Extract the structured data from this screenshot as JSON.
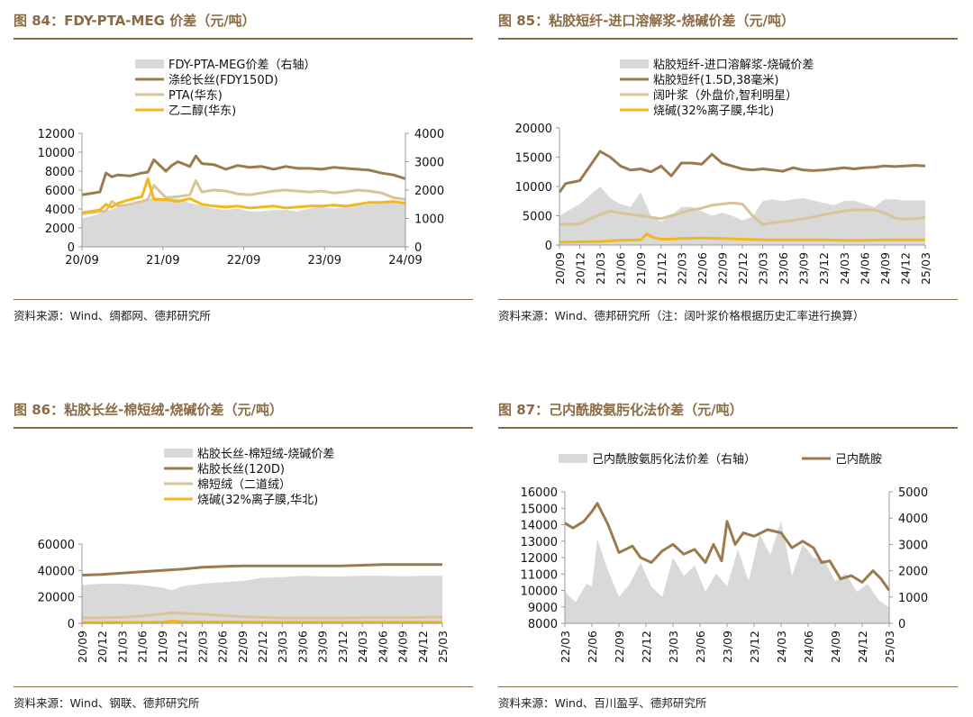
{
  "colors": {
    "area": "#D9D9D9",
    "brown": "#9B7B4E",
    "tan": "#D7C49B",
    "gold": "#F2B81B",
    "title": "#8B6B45"
  },
  "panels": [
    {
      "title": "图 84：FDY-PTA-MEG 价差（元/吨）",
      "source": "资料来源：Wind、绸都网、德邦研究所"
    },
    {
      "title": "图 85：粘胶短纤-进口溶解浆-烧碱价差（元/吨）",
      "source": "资料来源：Wind、德邦研究所（注：阔叶浆价格根据历史汇率进行换算）"
    },
    {
      "title": "图 86：粘胶长丝-棉短绒-烧碱价差（元/吨）",
      "source": "资料来源：Wind、钢联、德邦研究所"
    },
    {
      "title": "图 87：己内酰胺氨肟化法价差（元/吨）",
      "source": "资料来源：Wind、百川盈孚、德邦研究所"
    }
  ],
  "chart_data": [
    {
      "type": "line",
      "title": "FDY-PTA-MEG 价差（元/吨）",
      "x_ticks": [
        "20/09",
        "21/09",
        "22/09",
        "23/09",
        "24/09"
      ],
      "x_domain": [
        0,
        54
      ],
      "ylim": [
        0,
        12000
      ],
      "y_ticks": [
        0,
        2000,
        4000,
        6000,
        8000,
        10000,
        12000
      ],
      "y2lim": [
        0,
        4000
      ],
      "y2_ticks": [
        0,
        1000,
        2000,
        3000,
        4000
      ],
      "legend": [
        "FDY-PTA-MEG价差（右轴）",
        "涤纶长丝(FDY150D)",
        "PTA(华东)",
        "乙二醇(华东)"
      ],
      "series": [
        {
          "name": "FDY-PTA-MEG价差（右轴）",
          "kind": "area",
          "axis": "right",
          "color": "area",
          "x": [
            0,
            2,
            4,
            6,
            8,
            10,
            12,
            14,
            16,
            18,
            20,
            22,
            24,
            26,
            28,
            30,
            32,
            34,
            36,
            38,
            40,
            42,
            44,
            46,
            48,
            50,
            52,
            54
          ],
          "values": [
            1000,
            1100,
            1250,
            1400,
            1500,
            1550,
            1750,
            1700,
            1700,
            1550,
            1450,
            1350,
            1300,
            1350,
            1250,
            1250,
            1300,
            1300,
            1250,
            1350,
            1400,
            1350,
            1400,
            1450,
            1500,
            1550,
            1600,
            1600
          ]
        },
        {
          "name": "涤纶长丝(FDY150D)",
          "kind": "line",
          "axis": "left",
          "color": "brown",
          "x": [
            0,
            3,
            4,
            5,
            6,
            8,
            10,
            11,
            12,
            14,
            15,
            16,
            18,
            19,
            20,
            22,
            24,
            26,
            28,
            30,
            32,
            34,
            36,
            38,
            40,
            42,
            44,
            46,
            48,
            50,
            52,
            54
          ],
          "values": [
            5500,
            5800,
            7800,
            7400,
            7600,
            7500,
            7800,
            7900,
            9200,
            8000,
            8600,
            9000,
            8500,
            9600,
            8800,
            8700,
            8200,
            8600,
            8400,
            8500,
            8200,
            8500,
            8300,
            8300,
            8200,
            8400,
            8300,
            8200,
            8100,
            7800,
            7600,
            7200
          ]
        },
        {
          "name": "PTA(华东)",
          "kind": "line",
          "axis": "left",
          "color": "tan",
          "x": [
            0,
            4,
            5,
            6,
            8,
            10,
            11,
            12,
            14,
            16,
            18,
            19,
            20,
            22,
            24,
            26,
            28,
            30,
            32,
            34,
            36,
            38,
            40,
            42,
            44,
            46,
            48,
            50,
            52,
            54
          ],
          "values": [
            3500,
            3800,
            4800,
            4300,
            4500,
            4800,
            5000,
            6500,
            5200,
            5300,
            5500,
            7000,
            5800,
            6000,
            5900,
            5600,
            5500,
            5700,
            5900,
            6000,
            5900,
            5800,
            5900,
            5700,
            5800,
            6000,
            5900,
            5700,
            5200,
            5000
          ]
        },
        {
          "name": "乙二醇(华东)",
          "kind": "line",
          "axis": "left",
          "color": "gold",
          "x": [
            0,
            3,
            4,
            5,
            6,
            8,
            10,
            11,
            12,
            14,
            16,
            18,
            20,
            22,
            24,
            26,
            28,
            30,
            32,
            34,
            36,
            38,
            40,
            42,
            44,
            46,
            48,
            50,
            52,
            54
          ],
          "values": [
            3600,
            3900,
            4500,
            4200,
            4600,
            5000,
            5300,
            7200,
            5000,
            5000,
            4800,
            5100,
            4500,
            4300,
            4200,
            4300,
            4100,
            4200,
            4300,
            4100,
            4200,
            4300,
            4300,
            4400,
            4300,
            4500,
            4700,
            4700,
            4800,
            4600
          ]
        }
      ]
    },
    {
      "type": "line",
      "title": "粘胶短纤-进口溶解浆-烧碱价差（元/吨）",
      "x_ticks": [
        "20/09",
        "20/12",
        "21/03",
        "21/06",
        "21/09",
        "21/12",
        "22/03",
        "22/06",
        "22/09",
        "22/12",
        "23/03",
        "23/06",
        "23/09",
        "23/12",
        "24/03",
        "24/06",
        "24/09",
        "24/12",
        "25/03"
      ],
      "x_domain": [
        0,
        18
      ],
      "ylim": [
        0,
        20000
      ],
      "y_ticks": [
        0,
        5000,
        10000,
        15000,
        20000
      ],
      "legend": [
        "粘胶短纤-进口溶解浆-烧碱价差",
        "粘胶短纤(1.5D,38毫米)",
        "阔叶浆（外盘价,智利明星）",
        "烧碱(32%离子膜,华北)"
      ],
      "series": [
        {
          "name": "粘胶短纤-进口溶解浆-烧碱价差",
          "kind": "area",
          "axis": "left",
          "color": "area",
          "x": [
            0,
            0.5,
            1,
            1.5,
            2,
            2.5,
            3,
            3.5,
            4,
            4.5,
            5,
            5.5,
            6,
            6.5,
            7,
            7.5,
            8,
            8.5,
            9,
            9.5,
            10,
            10.5,
            11,
            11.5,
            12,
            12.5,
            13,
            13.5,
            14,
            14.5,
            15,
            15.5,
            16,
            16.5,
            17,
            17.5,
            18
          ],
          "values": [
            5000,
            6000,
            7000,
            8500,
            10000,
            8000,
            7000,
            6500,
            9000,
            5000,
            4000,
            5000,
            6500,
            6500,
            5800,
            5000,
            5500,
            5000,
            4200,
            4800,
            7500,
            7800,
            7500,
            7800,
            8000,
            7600,
            7200,
            6800,
            7500,
            7600,
            7000,
            6500,
            7800,
            7800,
            7600,
            7600,
            7600
          ]
        },
        {
          "name": "粘胶短纤(1.5D,38毫米)",
          "kind": "line",
          "axis": "left",
          "color": "brown",
          "x": [
            0,
            0.3,
            1,
            1.5,
            2,
            2.5,
            3,
            3.5,
            4,
            4.5,
            5,
            5.5,
            6,
            6.5,
            7,
            7.5,
            8,
            8.5,
            9,
            9.5,
            10,
            10.5,
            11,
            11.5,
            12,
            12.5,
            13,
            13.5,
            14,
            14.5,
            15,
            15.5,
            16,
            16.5,
            17,
            17.5,
            18
          ],
          "values": [
            9000,
            10500,
            11000,
            13500,
            16000,
            15000,
            13500,
            12800,
            13000,
            12500,
            13500,
            11800,
            14000,
            14000,
            13800,
            15500,
            14000,
            13500,
            13000,
            12800,
            13000,
            12800,
            12600,
            13200,
            12800,
            12700,
            12800,
            13000,
            13200,
            13000,
            13200,
            13300,
            13500,
            13400,
            13500,
            13600,
            13500
          ]
        },
        {
          "name": "阔叶浆（外盘价,智利明星）",
          "kind": "line",
          "axis": "left",
          "color": "tan",
          "x": [
            0,
            1,
            1.5,
            2,
            2.5,
            3,
            4,
            5,
            5.5,
            6,
            6.5,
            7,
            7.5,
            8,
            8.5,
            9,
            9.5,
            10,
            10.5,
            11,
            11.5,
            12,
            12.5,
            13,
            13.5,
            14,
            14.5,
            15,
            15.5,
            16,
            16.5,
            17,
            17.5,
            18
          ],
          "values": [
            3500,
            3600,
            4500,
            5200,
            5800,
            5500,
            5000,
            4500,
            5000,
            5500,
            6000,
            6300,
            6800,
            7000,
            7200,
            7000,
            5000,
            3500,
            3800,
            4000,
            4200,
            4500,
            4800,
            5200,
            5500,
            5800,
            6000,
            6000,
            6000,
            5500,
            4600,
            4400,
            4500,
            4700
          ]
        },
        {
          "name": "烧碱(32%离子膜,华北)",
          "kind": "line",
          "axis": "left",
          "color": "gold",
          "x": [
            0,
            2,
            3,
            4,
            4.3,
            4.6,
            5,
            5.5,
            6,
            7,
            8,
            9,
            10,
            11,
            12,
            13,
            14,
            15,
            16,
            17,
            18
          ],
          "values": [
            500,
            600,
            800,
            900,
            1900,
            1300,
            1000,
            1000,
            1100,
            1200,
            1100,
            1000,
            900,
            900,
            900,
            900,
            800,
            800,
            900,
            900,
            900
          ]
        }
      ]
    },
    {
      "type": "line",
      "title": "粘胶长丝-棉短绒-烧碱价差（元/吨）",
      "x_ticks": [
        "20/09",
        "20/12",
        "21/03",
        "21/06",
        "21/09",
        "21/12",
        "22/03",
        "22/06",
        "22/09",
        "22/12",
        "23/03",
        "23/06",
        "23/09",
        "23/12",
        "24/03",
        "24/06",
        "24/09",
        "24/12",
        "25/03"
      ],
      "x_domain": [
        0,
        18
      ],
      "ylim": [
        0,
        60000
      ],
      "y_ticks": [
        0,
        20000,
        40000,
        60000
      ],
      "legend": [
        "粘胶长丝-棉短绒-烧碱价差",
        "粘胶长丝(120D)",
        "棉短绒（二道绒）",
        "烧碱(32%离子膜,华北)"
      ],
      "series": [
        {
          "name": "粘胶长丝-棉短绒-烧碱价差",
          "kind": "area",
          "axis": "left",
          "color": "area",
          "x": [
            0,
            1,
            2,
            3,
            4,
            4.5,
            5,
            6,
            7,
            8,
            9,
            10,
            11,
            12,
            13,
            14,
            15,
            16,
            17,
            18
          ],
          "values": [
            29000,
            30000,
            30000,
            29000,
            27000,
            25000,
            28000,
            30000,
            31000,
            32000,
            34500,
            35000,
            36000,
            35500,
            35500,
            36000,
            36000,
            35500,
            36000,
            36000
          ]
        },
        {
          "name": "粘胶长丝(120D)",
          "kind": "line",
          "axis": "left",
          "color": "brown",
          "x": [
            0,
            1,
            2,
            3,
            4,
            5,
            6,
            7,
            8,
            9,
            10,
            11,
            12,
            13,
            14,
            15,
            16,
            17,
            18
          ],
          "values": [
            36500,
            37000,
            38000,
            39000,
            40000,
            41000,
            42500,
            43000,
            43500,
            43500,
            43500,
            43500,
            43500,
            43500,
            44000,
            44500,
            44500,
            44500,
            44500
          ]
        },
        {
          "name": "棉短绒（二道绒）",
          "kind": "line",
          "axis": "left",
          "color": "tan",
          "x": [
            0,
            2,
            3,
            4,
            4.5,
            5,
            6,
            7,
            8,
            9,
            10,
            11,
            12,
            13,
            14,
            15,
            16,
            17,
            18
          ],
          "values": [
            4000,
            4500,
            5500,
            7000,
            8000,
            7500,
            7000,
            6000,
            5000,
            4500,
            4000,
            4000,
            4000,
            4000,
            4200,
            4200,
            4300,
            4500,
            4800
          ]
        },
        {
          "name": "烧碱(32%离子膜,华北)",
          "kind": "line",
          "axis": "left",
          "color": "gold",
          "x": [
            0,
            3,
            4,
            4.5,
            5,
            6,
            8,
            10,
            12,
            14,
            16,
            18
          ],
          "values": [
            500,
            700,
            900,
            1800,
            1200,
            1000,
            1000,
            900,
            900,
            800,
            900,
            900
          ]
        }
      ]
    },
    {
      "type": "line",
      "title": "己内酰胺氨肟化法价差（元/吨）",
      "x_ticks": [
        "22/03",
        "22/06",
        "22/09",
        "22/12",
        "23/03",
        "23/06",
        "23/09",
        "23/12",
        "24/03",
        "24/06",
        "24/09",
        "24/12",
        "25/03"
      ],
      "x_domain": [
        0,
        12
      ],
      "ylim": [
        8000,
        16000
      ],
      "y_ticks": [
        8000,
        9000,
        10000,
        11000,
        12000,
        13000,
        14000,
        15000,
        16000
      ],
      "y2lim": [
        0,
        5000
      ],
      "y2_ticks": [
        0,
        1000,
        2000,
        3000,
        4000,
        5000
      ],
      "legend": [
        "己内酰胺氨肟化法价差（右轴）",
        "己内酰胺"
      ],
      "series": [
        {
          "name": "己内酰胺氨肟化法价差（右轴）",
          "kind": "area",
          "axis": "right",
          "color": "area",
          "x": [
            0,
            0.4,
            0.8,
            1,
            1.2,
            1.6,
            2,
            2.4,
            2.8,
            3.2,
            3.6,
            4,
            4.4,
            4.8,
            5.2,
            5.6,
            6,
            6.4,
            6.8,
            7.2,
            7.6,
            8,
            8.4,
            8.8,
            9.2,
            9.6,
            10,
            10.4,
            10.8,
            11.2,
            11.6,
            12
          ],
          "values": [
            1200,
            800,
            1500,
            1400,
            3200,
            2000,
            1000,
            1500,
            2300,
            1400,
            1000,
            2500,
            1800,
            2200,
            1200,
            1900,
            1400,
            2800,
            1600,
            3400,
            2600,
            3900,
            1800,
            3000,
            2500,
            2400,
            1600,
            1900,
            1200,
            1500,
            900,
            600
          ]
        },
        {
          "name": "己内酰胺",
          "kind": "line",
          "axis": "left",
          "color": "brown",
          "x": [
            0,
            0.3,
            0.7,
            1,
            1.2,
            1.6,
            2,
            2.5,
            2.8,
            3.2,
            3.6,
            4,
            4.4,
            4.8,
            5.2,
            5.5,
            5.8,
            6,
            6.3,
            6.6,
            7,
            7.5,
            8,
            8.4,
            8.8,
            9.2,
            9.5,
            9.8,
            10.2,
            10.6,
            11,
            11.4,
            11.7,
            12
          ],
          "values": [
            14100,
            13800,
            14200,
            14800,
            15300,
            14000,
            12300,
            12700,
            12000,
            11700,
            12400,
            12800,
            12200,
            12500,
            11700,
            12800,
            11800,
            14200,
            12800,
            13500,
            13300,
            13700,
            13500,
            12600,
            13000,
            12600,
            11700,
            11800,
            10700,
            10900,
            10500,
            11200,
            10700,
            10000
          ]
        }
      ]
    }
  ]
}
